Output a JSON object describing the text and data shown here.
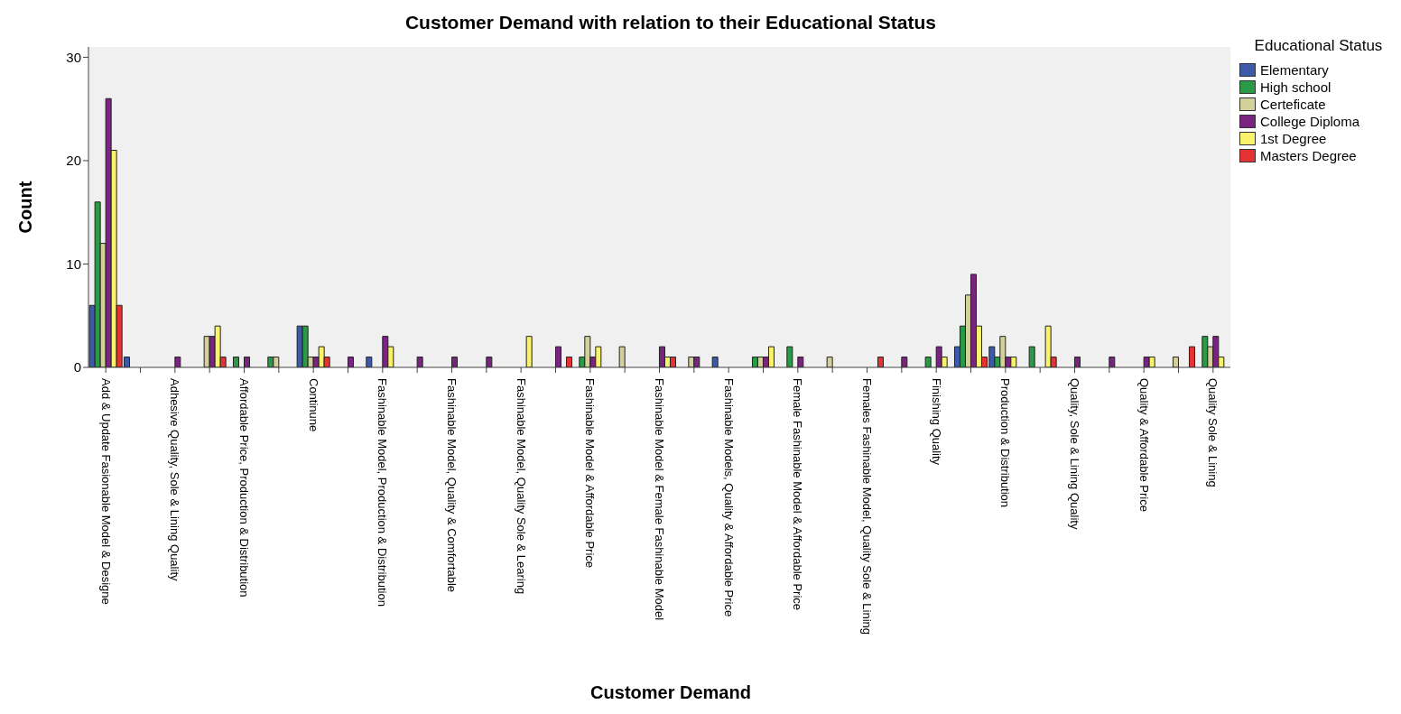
{
  "chart_data": {
    "type": "bar",
    "title": "Customer Demand with relation to their Educational Status",
    "xlabel": "Customer Demand",
    "ylabel": "Count",
    "legend_title": "Educational Status",
    "categories": [
      "Add & Update Fasionable Model & Designe",
      null,
      "Adhesive Quality, Sole & Lining Quality",
      null,
      "Affordable Price, Production & Distribution",
      null,
      "Continune",
      null,
      "Fashinable Model, Production & Distribution",
      null,
      "Fashinable Model, Quality & Comfortable",
      null,
      "Fashinable Model, Quality Sole & Learing",
      null,
      "Fashinable Model & Affordable Price",
      null,
      "Fashinable Model & Female Fashinable Model",
      null,
      "Fashinable Models, Quality & Affordable Price",
      null,
      "Female Fashinable Model & Affordable Price",
      null,
      "Females Fashinable Model, Quality Sole & Lining",
      null,
      "Finishing Quality",
      null,
      "Production & Distribution",
      null,
      "Quality, Sole & Lining Quality",
      null,
      "Quality & Affordable Price",
      null,
      "Quality Sole & Lining"
    ],
    "series": [
      {
        "name": "Elementary",
        "color": "#3c5aa8",
        "values": [
          6,
          1,
          null,
          null,
          null,
          null,
          4,
          null,
          1,
          null,
          null,
          null,
          null,
          null,
          null,
          null,
          null,
          null,
          1,
          null,
          null,
          null,
          null,
          null,
          null,
          2,
          2,
          null,
          null,
          null,
          null,
          null,
          null
        ]
      },
      {
        "name": "High school",
        "color": "#2a9a46",
        "values": [
          16,
          null,
          null,
          null,
          1,
          1,
          4,
          null,
          null,
          null,
          null,
          null,
          null,
          null,
          1,
          null,
          null,
          null,
          null,
          1,
          2,
          null,
          null,
          null,
          1,
          4,
          1,
          2,
          null,
          null,
          null,
          null,
          3
        ]
      },
      {
        "name": "Certeficate",
        "color": "#d4d09c",
        "values": [
          12,
          null,
          null,
          3,
          null,
          1,
          1,
          null,
          null,
          null,
          null,
          null,
          null,
          null,
          3,
          2,
          null,
          1,
          null,
          1,
          null,
          1,
          null,
          null,
          null,
          7,
          3,
          null,
          null,
          null,
          null,
          1,
          2
        ]
      },
      {
        "name": "College Diploma",
        "color": "#7a2380",
        "values": [
          26,
          null,
          1,
          3,
          1,
          null,
          1,
          1,
          3,
          1,
          1,
          1,
          null,
          2,
          1,
          null,
          2,
          1,
          null,
          1,
          1,
          null,
          null,
          1,
          2,
          9,
          1,
          null,
          1,
          1,
          1,
          null,
          3
        ]
      },
      {
        "name": "1st Degree",
        "color": "#f8f36a",
        "values": [
          21,
          null,
          null,
          4,
          null,
          null,
          2,
          null,
          2,
          null,
          null,
          null,
          3,
          null,
          2,
          null,
          1,
          null,
          null,
          2,
          null,
          null,
          null,
          null,
          1,
          4,
          1,
          4,
          null,
          null,
          1,
          null,
          1
        ]
      },
      {
        "name": "Masters Degree",
        "color": "#e63232",
        "values": [
          6,
          null,
          null,
          1,
          null,
          null,
          1,
          null,
          null,
          null,
          null,
          null,
          null,
          1,
          null,
          null,
          1,
          null,
          null,
          null,
          null,
          null,
          1,
          null,
          null,
          1,
          null,
          1,
          null,
          null,
          null,
          2,
          null
        ]
      }
    ],
    "ylim": [
      0,
      31
    ],
    "yticks": [
      0,
      10,
      20,
      30
    ],
    "legend": "right"
  }
}
